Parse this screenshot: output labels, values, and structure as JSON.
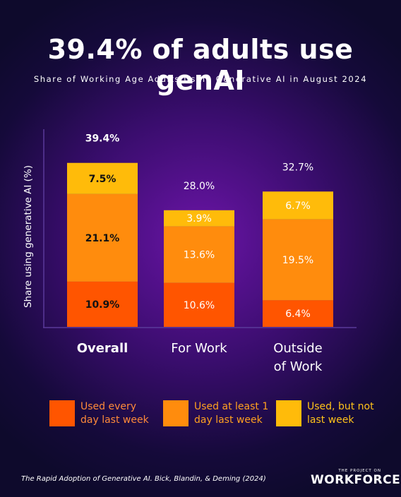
{
  "title": "39.4% of adults use genAI",
  "subtitle": "Share of Working Age Adults Using Generative AI in August 2024",
  "colors": {
    "every_day": "#ff5500",
    "at_least_1_day": "#ff8c0d",
    "not_last_week": "#ffbb0a"
  },
  "legend": [
    {
      "label_line1": "Used every",
      "label_line2": "day last week",
      "color": "#ff5500",
      "text_color": "#ff8a3a"
    },
    {
      "label_line1": "Used at least 1",
      "label_line2": "day last week",
      "color": "#ff8c0d",
      "text_color": "#ffa020"
    },
    {
      "label_line1": "Used, but not",
      "label_line2": "last week",
      "color": "#ffbb0a",
      "text_color": "#ffc21a"
    }
  ],
  "chart_data": {
    "type": "bar",
    "stacked": true,
    "title": "39.4% of adults use genAI",
    "subtitle": "Share of Working Age Adults Using Generative AI in August 2024",
    "xlabel": "",
    "ylabel": "Share using generative AI (%)",
    "categories": [
      "Overall",
      "For Work",
      "Outside of Work"
    ],
    "category_lines": [
      [
        "Overall"
      ],
      [
        "For Work"
      ],
      [
        "Outside",
        "of Work"
      ]
    ],
    "series": [
      {
        "name": "Used every day last week",
        "values": [
          10.9,
          10.6,
          6.4
        ],
        "labels": [
          "10.9%",
          "10.6%",
          "6.4%"
        ]
      },
      {
        "name": "Used at least 1 day last week",
        "values": [
          21.1,
          13.6,
          19.5
        ],
        "labels": [
          "21.1%",
          "13.6%",
          "19.5%"
        ]
      },
      {
        "name": "Used, but not last week",
        "values": [
          7.5,
          3.9,
          6.7
        ],
        "labels": [
          "7.5%",
          "3.9%",
          "6.7%"
        ]
      }
    ],
    "totals": [
      39.4,
      28.0,
      32.7
    ],
    "total_labels": [
      "39.4%",
      "28.0%",
      "32.7%"
    ],
    "bold_category": "Overall",
    "ylim": [
      0,
      47
    ],
    "grid": false,
    "legend_position": "bottom"
  },
  "footer": {
    "citation": "The Rapid Adoption of Generative AI. Bick, Blandin, & Deming (2024)",
    "logo_small": "THE PROJECT ON",
    "logo_big": "WORKFORCE"
  }
}
